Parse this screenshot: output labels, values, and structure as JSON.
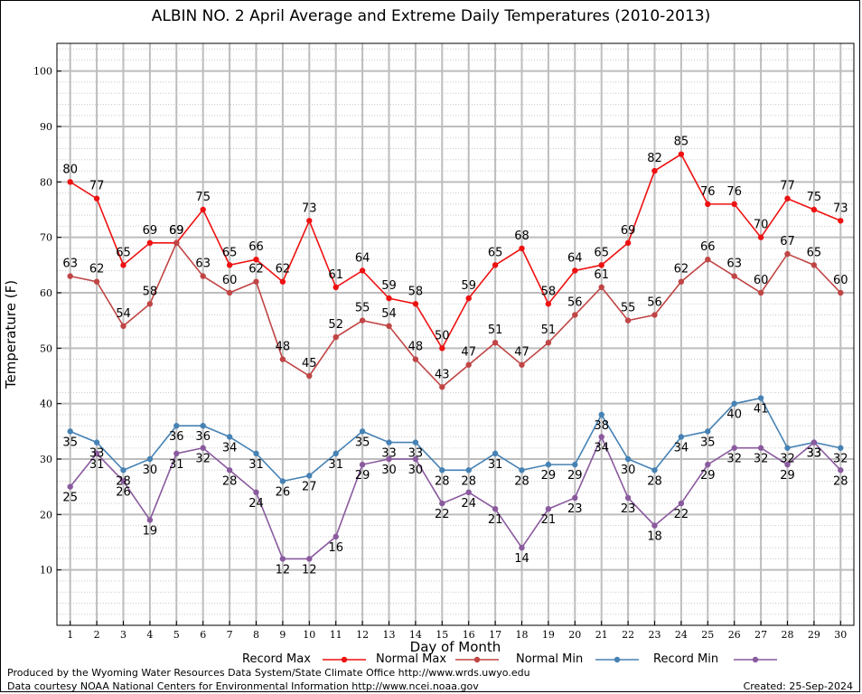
{
  "chart_data": {
    "type": "line",
    "title": "ALBIN NO. 2 April Average and Extreme Daily Temperatures (2010-2013)",
    "xlabel": "Day of Month",
    "ylabel": "Temperature (F)",
    "xlim": [
      0.5,
      30.5
    ],
    "ylim": [
      0,
      105
    ],
    "yticks": [
      10,
      20,
      30,
      40,
      50,
      60,
      70,
      80,
      90,
      100
    ],
    "x": [
      1,
      2,
      3,
      4,
      5,
      6,
      7,
      8,
      9,
      10,
      11,
      12,
      13,
      14,
      15,
      16,
      17,
      18,
      19,
      20,
      21,
      22,
      23,
      24,
      25,
      26,
      27,
      28,
      29,
      30
    ],
    "grid": true,
    "legend_position": "bottom",
    "series": [
      {
        "name": "Record Max",
        "color": "#ee1111",
        "values": [
          80,
          77,
          65,
          69,
          69,
          75,
          65,
          66,
          62,
          73,
          61,
          64,
          59,
          58,
          50,
          59,
          65,
          68,
          58,
          64,
          65,
          69,
          82,
          85,
          76,
          76,
          70,
          77,
          75,
          73
        ]
      },
      {
        "name": "Normal Max",
        "color": "#c04545",
        "values": [
          63,
          62,
          54,
          58,
          69,
          63,
          60,
          62,
          48,
          45,
          52,
          55,
          54,
          48,
          43,
          47,
          51,
          47,
          51,
          56,
          61,
          55,
          56,
          62,
          66,
          63,
          60,
          67,
          65,
          60
        ]
      },
      {
        "name": "Normal Min",
        "color": "#4682b4",
        "values": [
          35,
          33,
          28,
          30,
          36,
          36,
          34,
          31,
          26,
          27,
          31,
          35,
          33,
          33,
          28,
          28,
          31,
          28,
          29,
          29,
          38,
          30,
          28,
          34,
          35,
          40,
          41,
          32,
          33,
          32
        ]
      },
      {
        "name": "Record Min",
        "color": "#8a5a9e",
        "values": [
          25,
          31,
          26,
          19,
          31,
          32,
          28,
          24,
          12,
          12,
          16,
          29,
          30,
          30,
          22,
          24,
          21,
          14,
          21,
          23,
          34,
          23,
          18,
          22,
          29,
          32,
          32,
          29,
          33,
          28
        ]
      }
    ]
  },
  "footer": {
    "produced_by": "Produced by the Wyoming Water Resources Data System/State Climate Office http://www.wrds.uwyo.edu",
    "data_courtesy": "Data courtesy NOAA National Centers for Environmental Information http://www.ncei.noaa.gov",
    "created": "Created:  25-Sep-2024"
  }
}
